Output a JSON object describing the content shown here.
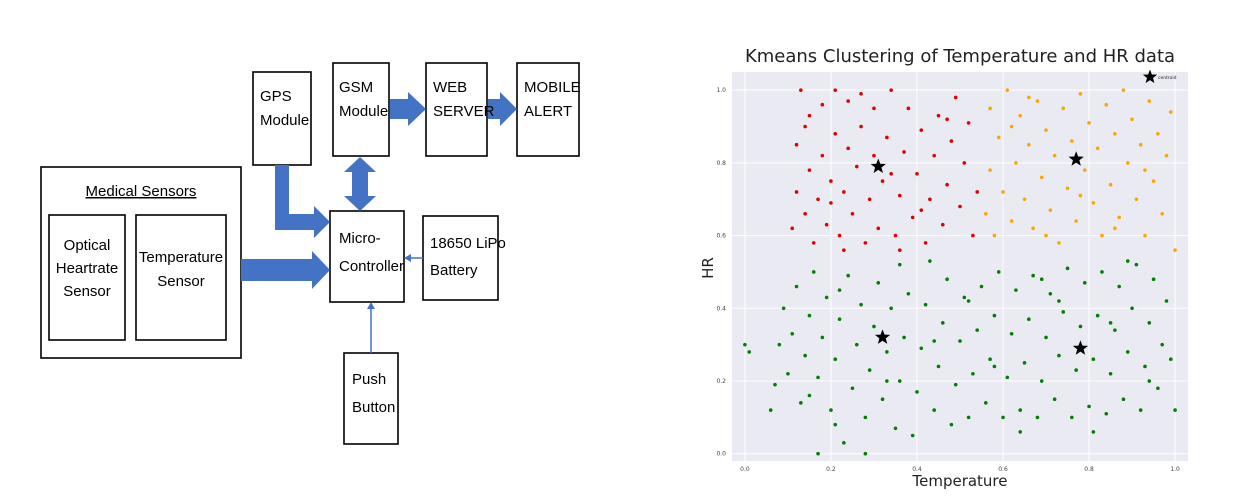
{
  "diagram": {
    "gps_module": [
      "GPS",
      "Module"
    ],
    "gsm_module": [
      "GSM",
      "Module"
    ],
    "web_server": [
      "WEB",
      "SERVER"
    ],
    "mobile_alert": [
      "MOBILE",
      "ALERT"
    ],
    "medical_sensors_title": "Medical Sensors",
    "optical_sensor": [
      "Optical",
      "Heartrate",
      "Sensor"
    ],
    "temperature_sensor": [
      "Temperature",
      "Sensor"
    ],
    "microcontroller": [
      "Micro-",
      "Controller"
    ],
    "battery": [
      "18650 LiPo",
      "Battery"
    ],
    "push_button": [
      "Push",
      "Button"
    ],
    "arrow_color": "#4472c4"
  },
  "chart_data": {
    "type": "scatter",
    "title": "Kmeans Clustering of Temperature and HR data",
    "xlabel": "Temperature",
    "ylabel": "HR",
    "xlim": [
      -0.03,
      1.03
    ],
    "ylim": [
      -0.02,
      1.05
    ],
    "xticks": [
      "0.0",
      "0.2",
      "0.4",
      "0.6",
      "0.8",
      "1.0"
    ],
    "yticks": [
      "0.0",
      "0.2",
      "0.4",
      "0.6",
      "0.8",
      "1.0"
    ],
    "grid": true,
    "legend": {
      "position": "top-right",
      "label": "centroid"
    },
    "series": [
      {
        "color": "#008000",
        "note_region": "HR < 0.55",
        "points": [
          [
            0.0,
            0.3
          ],
          [
            0.01,
            0.28
          ],
          [
            0.06,
            0.12
          ],
          [
            0.07,
            0.19
          ],
          [
            0.08,
            0.3
          ],
          [
            0.09,
            0.4
          ],
          [
            0.1,
            0.22
          ],
          [
            0.11,
            0.33
          ],
          [
            0.12,
            0.46
          ],
          [
            0.13,
            0.14
          ],
          [
            0.14,
            0.27
          ],
          [
            0.15,
            0.38
          ],
          [
            0.16,
            0.5
          ],
          [
            0.17,
            0.0
          ],
          [
            0.17,
            0.21
          ],
          [
            0.18,
            0.32
          ],
          [
            0.19,
            0.43
          ],
          [
            0.2,
            0.12
          ],
          [
            0.21,
            0.26
          ],
          [
            0.22,
            0.37
          ],
          [
            0.23,
            0.03
          ],
          [
            0.24,
            0.49
          ],
          [
            0.25,
            0.18
          ],
          [
            0.26,
            0.3
          ],
          [
            0.27,
            0.41
          ],
          [
            0.28,
            0.0
          ],
          [
            0.28,
            0.1
          ],
          [
            0.29,
            0.23
          ],
          [
            0.3,
            0.35
          ],
          [
            0.31,
            0.47
          ],
          [
            0.32,
            0.15
          ],
          [
            0.33,
            0.28
          ],
          [
            0.34,
            0.4
          ],
          [
            0.35,
            0.07
          ],
          [
            0.36,
            0.2
          ],
          [
            0.37,
            0.32
          ],
          [
            0.38,
            0.44
          ],
          [
            0.39,
            0.05
          ],
          [
            0.4,
            0.17
          ],
          [
            0.41,
            0.29
          ],
          [
            0.42,
            0.41
          ],
          [
            0.43,
            0.53
          ],
          [
            0.44,
            0.12
          ],
          [
            0.45,
            0.24
          ],
          [
            0.46,
            0.36
          ],
          [
            0.47,
            0.48
          ],
          [
            0.48,
            0.08
          ],
          [
            0.49,
            0.19
          ],
          [
            0.5,
            0.31
          ],
          [
            0.51,
            0.43
          ],
          [
            0.52,
            0.1
          ],
          [
            0.53,
            0.22
          ],
          [
            0.54,
            0.34
          ],
          [
            0.55,
            0.46
          ],
          [
            0.56,
            0.14
          ],
          [
            0.57,
            0.26
          ],
          [
            0.58,
            0.38
          ],
          [
            0.59,
            0.5
          ],
          [
            0.6,
            0.1
          ],
          [
            0.61,
            0.21
          ],
          [
            0.62,
            0.33
          ],
          [
            0.63,
            0.45
          ],
          [
            0.64,
            0.12
          ],
          [
            0.65,
            0.25
          ],
          [
            0.66,
            0.37
          ],
          [
            0.67,
            0.49
          ],
          [
            0.68,
            0.1
          ],
          [
            0.69,
            0.2
          ],
          [
            0.7,
            0.32
          ],
          [
            0.71,
            0.44
          ],
          [
            0.72,
            0.15
          ],
          [
            0.73,
            0.27
          ],
          [
            0.74,
            0.39
          ],
          [
            0.75,
            0.51
          ],
          [
            0.76,
            0.1
          ],
          [
            0.77,
            0.23
          ],
          [
            0.78,
            0.35
          ],
          [
            0.79,
            0.47
          ],
          [
            0.8,
            0.13
          ],
          [
            0.81,
            0.26
          ],
          [
            0.82,
            0.38
          ],
          [
            0.83,
            0.5
          ],
          [
            0.84,
            0.11
          ],
          [
            0.85,
            0.22
          ],
          [
            0.86,
            0.34
          ],
          [
            0.87,
            0.46
          ],
          [
            0.88,
            0.15
          ],
          [
            0.89,
            0.28
          ],
          [
            0.9,
            0.4
          ],
          [
            0.91,
            0.52
          ],
          [
            0.92,
            0.12
          ],
          [
            0.93,
            0.24
          ],
          [
            0.94,
            0.36
          ],
          [
            0.95,
            0.48
          ],
          [
            0.96,
            0.18
          ],
          [
            0.97,
            0.3
          ],
          [
            0.98,
            0.42
          ],
          [
            0.99,
            0.26
          ],
          [
            1.0,
            0.12
          ],
          [
            0.15,
            0.16
          ],
          [
            0.21,
            0.08
          ],
          [
            0.33,
            0.2
          ],
          [
            0.44,
            0.31
          ],
          [
            0.52,
            0.42
          ],
          [
            0.64,
            0.06
          ],
          [
            0.73,
            0.42
          ],
          [
            0.85,
            0.36
          ],
          [
            0.94,
            0.2
          ],
          [
            0.22,
            0.45
          ],
          [
            0.36,
            0.52
          ],
          [
            0.58,
            0.24
          ],
          [
            0.69,
            0.48
          ],
          [
            0.81,
            0.06
          ],
          [
            0.89,
            0.53
          ]
        ]
      },
      {
        "color": "#e00000",
        "note_region": "low temp, high HR",
        "points": [
          [
            0.11,
            0.62
          ],
          [
            0.12,
            0.72
          ],
          [
            0.12,
            0.85
          ],
          [
            0.13,
            1.0
          ],
          [
            0.14,
            0.66
          ],
          [
            0.15,
            0.78
          ],
          [
            0.15,
            0.93
          ],
          [
            0.16,
            0.58
          ],
          [
            0.17,
            0.7
          ],
          [
            0.18,
            0.82
          ],
          [
            0.18,
            0.96
          ],
          [
            0.19,
            0.63
          ],
          [
            0.2,
            0.75
          ],
          [
            0.21,
            0.88
          ],
          [
            0.21,
            1.0
          ],
          [
            0.22,
            0.6
          ],
          [
            0.23,
            0.72
          ],
          [
            0.24,
            0.84
          ],
          [
            0.24,
            0.97
          ],
          [
            0.25,
            0.66
          ],
          [
            0.26,
            0.79
          ],
          [
            0.27,
            0.9
          ],
          [
            0.28,
            0.58
          ],
          [
            0.29,
            0.7
          ],
          [
            0.3,
            0.82
          ],
          [
            0.3,
            0.95
          ],
          [
            0.31,
            0.62
          ],
          [
            0.32,
            0.75
          ],
          [
            0.33,
            0.87
          ],
          [
            0.34,
            1.0
          ],
          [
            0.35,
            0.6
          ],
          [
            0.36,
            0.71
          ],
          [
            0.37,
            0.83
          ],
          [
            0.38,
            0.95
          ],
          [
            0.39,
            0.65
          ],
          [
            0.4,
            0.77
          ],
          [
            0.41,
            0.89
          ],
          [
            0.42,
            0.58
          ],
          [
            0.43,
            0.7
          ],
          [
            0.44,
            0.82
          ],
          [
            0.45,
            0.93
          ],
          [
            0.46,
            0.63
          ],
          [
            0.47,
            0.74
          ],
          [
            0.48,
            0.86
          ],
          [
            0.49,
            0.98
          ],
          [
            0.5,
            0.68
          ],
          [
            0.51,
            0.8
          ],
          [
            0.52,
            0.91
          ],
          [
            0.53,
            0.6
          ],
          [
            0.54,
            0.72
          ],
          [
            0.14,
            0.9
          ],
          [
            0.2,
            0.69
          ],
          [
            0.27,
            0.99
          ],
          [
            0.34,
            0.77
          ],
          [
            0.41,
            0.67
          ],
          [
            0.47,
            0.92
          ],
          [
            0.23,
            0.56
          ],
          [
            0.36,
            0.56
          ]
        ]
      },
      {
        "color": "#ffa500",
        "note_region": "high temp, high HR",
        "points": [
          [
            0.56,
            0.66
          ],
          [
            0.57,
            0.78
          ],
          [
            0.57,
            0.95
          ],
          [
            0.58,
            0.6
          ],
          [
            0.59,
            0.87
          ],
          [
            0.6,
            0.72
          ],
          [
            0.61,
            1.0
          ],
          [
            0.62,
            0.64
          ],
          [
            0.63,
            0.8
          ],
          [
            0.64,
            0.93
          ],
          [
            0.65,
            0.7
          ],
          [
            0.66,
            0.85
          ],
          [
            0.67,
            0.62
          ],
          [
            0.68,
            0.97
          ],
          [
            0.69,
            0.76
          ],
          [
            0.7,
            0.89
          ],
          [
            0.71,
            0.67
          ],
          [
            0.72,
            0.82
          ],
          [
            0.73,
            0.58
          ],
          [
            0.74,
            0.95
          ],
          [
            0.75,
            0.73
          ],
          [
            0.76,
            0.86
          ],
          [
            0.77,
            0.64
          ],
          [
            0.78,
            0.99
          ],
          [
            0.79,
            0.78
          ],
          [
            0.8,
            0.91
          ],
          [
            0.81,
            0.69
          ],
          [
            0.82,
            0.84
          ],
          [
            0.83,
            0.6
          ],
          [
            0.84,
            0.96
          ],
          [
            0.85,
            0.74
          ],
          [
            0.86,
            0.88
          ],
          [
            0.87,
            0.65
          ],
          [
            0.88,
            1.0
          ],
          [
            0.89,
            0.8
          ],
          [
            0.9,
            0.92
          ],
          [
            0.91,
            0.7
          ],
          [
            0.92,
            0.85
          ],
          [
            0.93,
            0.6
          ],
          [
            0.94,
            0.97
          ],
          [
            0.95,
            0.75
          ],
          [
            0.96,
            0.88
          ],
          [
            0.97,
            0.66
          ],
          [
            0.98,
            0.82
          ],
          [
            0.99,
            0.94
          ],
          [
            1.0,
            0.56
          ],
          [
            0.62,
            0.9
          ],
          [
            0.7,
            0.6
          ],
          [
            0.78,
            0.71
          ],
          [
            0.86,
            0.62
          ],
          [
            0.93,
            0.78
          ],
          [
            0.66,
            0.98
          ]
        ]
      }
    ],
    "centroids": [
      [
        0.31,
        0.79
      ],
      [
        0.77,
        0.81
      ],
      [
        0.32,
        0.32
      ],
      [
        0.78,
        0.29
      ]
    ],
    "legend_centroid": [
      0.95,
      1.03
    ]
  }
}
